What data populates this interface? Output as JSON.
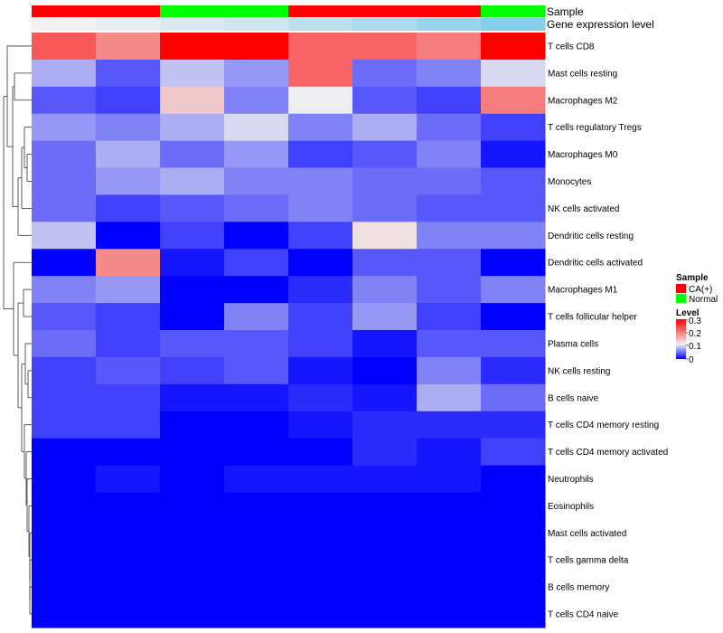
{
  "chart_data": {
    "type": "heatmap",
    "annotation_rows": [
      {
        "name": "Sample",
        "values": [
          "CA(+)",
          "CA(+)",
          "Normal",
          "Normal",
          "CA(+)",
          "CA(+)",
          "CA(+)",
          "Normal"
        ]
      },
      {
        "name": "Gene expression level",
        "values": [
          0.0,
          0.02,
          0.04,
          0.06,
          0.09,
          0.12,
          0.15,
          0.18
        ]
      }
    ],
    "rows": [
      "T cells CD8",
      "Mast cells resting",
      "Macrophages M2",
      "T cells regulatory  Tregs",
      "Macrophages M0",
      "Monocytes",
      "NK cells activated",
      "Dendritic cells resting",
      "Dendritic cells activated",
      "Macrophages M1",
      "T cells follicular helper",
      "Plasma cells",
      "NK cells resting",
      "B cells naive",
      "T cells CD4 memory resting",
      "T cells CD4 memory activated",
      "Neutrophils",
      "Eosinophils",
      "Mast cells activated",
      "T cells gamma delta",
      "B cells memory",
      "T cells CD4 naive"
    ],
    "values": [
      [
        0.23,
        0.19,
        0.3,
        0.3,
        0.22,
        0.22,
        0.2,
        0.3
      ],
      [
        0.08,
        0.04,
        0.09,
        0.07,
        0.22,
        0.05,
        0.06,
        0.1
      ],
      [
        0.04,
        0.03,
        0.14,
        0.06,
        0.11,
        0.04,
        0.03,
        0.2
      ],
      [
        0.07,
        0.06,
        0.08,
        0.1,
        0.06,
        0.08,
        0.05,
        0.03
      ],
      [
        0.05,
        0.08,
        0.05,
        0.07,
        0.03,
        0.04,
        0.06,
        0.01
      ],
      [
        0.05,
        0.07,
        0.08,
        0.06,
        0.06,
        0.05,
        0.05,
        0.04
      ],
      [
        0.05,
        0.03,
        0.04,
        0.05,
        0.06,
        0.05,
        0.04,
        0.04
      ],
      [
        0.09,
        0.0,
        0.03,
        0.0,
        0.03,
        0.12,
        0.06,
        0.06
      ],
      [
        0.0,
        0.19,
        0.01,
        0.03,
        0.0,
        0.04,
        0.04,
        0.0
      ],
      [
        0.06,
        0.07,
        0.0,
        0.0,
        0.02,
        0.06,
        0.04,
        0.06
      ],
      [
        0.04,
        0.03,
        0.0,
        0.06,
        0.03,
        0.07,
        0.03,
        0.0
      ],
      [
        0.05,
        0.03,
        0.04,
        0.04,
        0.03,
        0.01,
        0.04,
        0.04
      ],
      [
        0.03,
        0.04,
        0.03,
        0.04,
        0.01,
        0.0,
        0.06,
        0.02
      ],
      [
        0.03,
        0.03,
        0.01,
        0.01,
        0.02,
        0.01,
        0.08,
        0.05
      ],
      [
        0.03,
        0.03,
        0.0,
        0.0,
        0.01,
        0.02,
        0.02,
        0.02
      ],
      [
        0.0,
        0.0,
        0.0,
        0.0,
        0.0,
        0.02,
        0.01,
        0.03
      ],
      [
        0.0,
        0.01,
        0.0,
        0.01,
        0.01,
        0.01,
        0.01,
        0.0
      ],
      [
        0.0,
        0.0,
        0.0,
        0.0,
        0.0,
        0.0,
        0.0,
        0.0
      ],
      [
        0.0,
        0.0,
        0.0,
        0.0,
        0.0,
        0.0,
        0.0,
        0.0
      ],
      [
        0.0,
        0.0,
        0.0,
        0.0,
        0.0,
        0.0,
        0.0,
        0.0
      ],
      [
        0.0,
        0.0,
        0.0,
        0.0,
        0.0,
        0.0,
        0.0,
        0.0
      ],
      [
        0.0,
        0.0,
        0.0,
        0.0,
        0.0,
        0.0,
        0.0,
        0.0
      ]
    ],
    "color_scale": {
      "stops": [
        {
          "value": 0.0,
          "color": "#0000FF"
        },
        {
          "value": 0.11,
          "color": "#EEEEF0"
        },
        {
          "value": 0.3,
          "color": "#FF0000"
        }
      ],
      "range": [
        0,
        0.3
      ]
    },
    "expression_scale": {
      "low": "#F2F2F2",
      "high": "#87CEEB",
      "range": [
        0,
        0.18
      ]
    },
    "legend": {
      "sample_title": "Sample",
      "sample_entries": [
        {
          "label": "CA(+)",
          "color": "#FF0000"
        },
        {
          "label": "Normal",
          "color": "#00FF00"
        }
      ],
      "level_title": "Level",
      "level_ticks": [
        "0.3",
        "0.2",
        "0.1",
        "0"
      ],
      "position": "right"
    },
    "row_dendrogram": true
  }
}
